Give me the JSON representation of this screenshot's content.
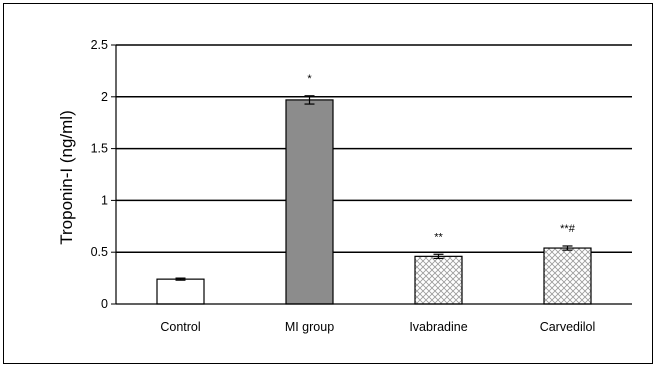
{
  "chart_data": {
    "type": "bar",
    "title": "",
    "xlabel": "",
    "ylabel": "Troponin-I (ng/ml)",
    "ylim": [
      0,
      2.5
    ],
    "yticks": [
      "0",
      "0.5",
      "1",
      "1.5",
      "2",
      "2.5"
    ],
    "grid": true,
    "categories": [
      "Control",
      "MI group",
      "Ivabradine",
      "Carvedilol"
    ],
    "values": [
      0.24,
      1.97,
      0.46,
      0.54
    ],
    "errors": [
      0.01,
      0.04,
      0.02,
      0.02
    ],
    "annotations": [
      "",
      "*",
      "**",
      "**#"
    ],
    "fills": [
      "white",
      "gray",
      "crosshatch",
      "crosshatch"
    ],
    "colors": {
      "gray": "#8c8c8c",
      "white": "#ffffff",
      "hatch": "#9a9a9a"
    }
  }
}
